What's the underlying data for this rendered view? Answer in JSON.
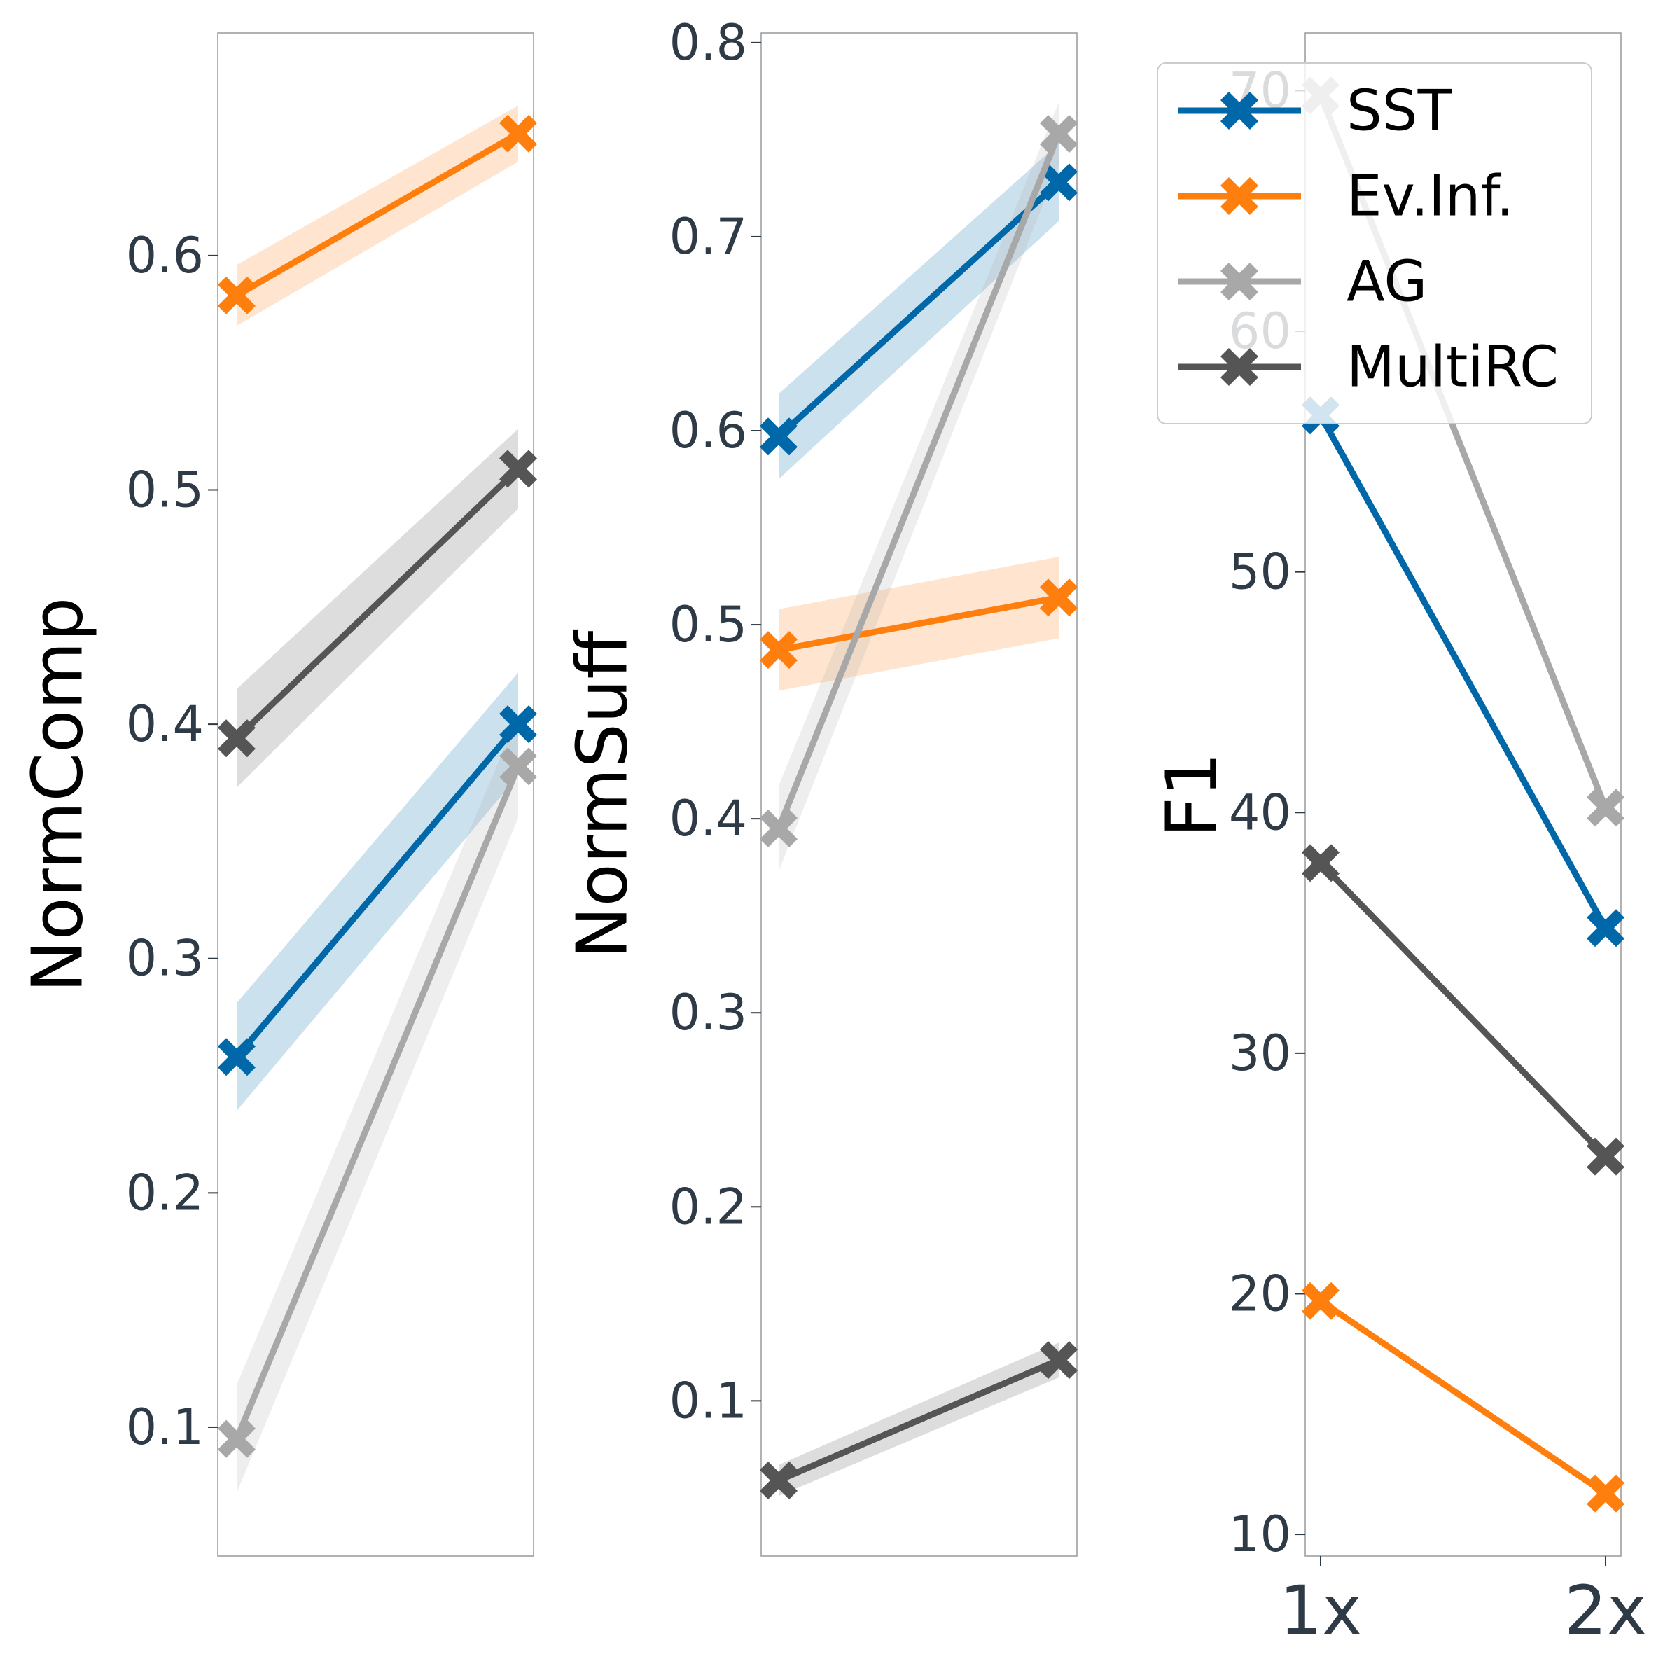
{
  "chart_data": [
    {
      "type": "line",
      "ylabel": "NormComp",
      "ylim": [
        0.045,
        0.695
      ],
      "yticks": [
        0.1,
        0.2,
        0.3,
        0.4,
        0.5,
        0.6
      ],
      "ytick_labels": [
        "0.1",
        "0.2",
        "0.3",
        "0.4",
        "0.5",
        "0.6"
      ],
      "x": [
        "1x",
        "2x"
      ],
      "show_xticks": false,
      "series": [
        {
          "name": "SST",
          "color": "#0068a8",
          "values": [
            0.258,
            0.4
          ],
          "lower": [
            0.235,
            0.378
          ],
          "upper": [
            0.281,
            0.422
          ]
        },
        {
          "name": "Ev.Inf.",
          "color": "#ff7f0e",
          "values": [
            0.583,
            0.652
          ],
          "lower": [
            0.57,
            0.64
          ],
          "upper": [
            0.596,
            0.664
          ]
        },
        {
          "name": "AG",
          "color": "#a8a8a8",
          "values": [
            0.095,
            0.382
          ],
          "lower": [
            0.072,
            0.36
          ],
          "upper": [
            0.118,
            0.404
          ]
        },
        {
          "name": "MultiRC",
          "color": "#555555",
          "values": [
            0.394,
            0.509
          ],
          "lower": [
            0.373,
            0.492
          ],
          "upper": [
            0.415,
            0.526
          ]
        }
      ]
    },
    {
      "type": "line",
      "ylabel": "NormSuff",
      "ylim": [
        0.02,
        0.805
      ],
      "yticks": [
        0.1,
        0.2,
        0.3,
        0.4,
        0.5,
        0.6,
        0.7,
        0.8
      ],
      "ytick_labels": [
        "0.1",
        "0.2",
        "0.3",
        "0.4",
        "0.5",
        "0.6",
        "0.7",
        "0.8"
      ],
      "x": [
        "1x",
        "2x"
      ],
      "show_xticks": false,
      "series": [
        {
          "name": "SST",
          "color": "#0068a8",
          "values": [
            0.597,
            0.728
          ],
          "lower": [
            0.575,
            0.708
          ],
          "upper": [
            0.619,
            0.748
          ]
        },
        {
          "name": "Ev.Inf.",
          "color": "#ff7f0e",
          "values": [
            0.487,
            0.514
          ],
          "lower": [
            0.466,
            0.493
          ],
          "upper": [
            0.508,
            0.535
          ]
        },
        {
          "name": "AG",
          "color": "#a8a8a8",
          "values": [
            0.395,
            0.753
          ],
          "lower": [
            0.373,
            0.737
          ],
          "upper": [
            0.417,
            0.769
          ]
        },
        {
          "name": "MultiRC",
          "color": "#555555",
          "values": [
            0.059,
            0.121
          ],
          "lower": [
            0.051,
            0.112
          ],
          "upper": [
            0.067,
            0.13
          ]
        }
      ]
    },
    {
      "type": "line",
      "ylabel": "F1",
      "ylim": [
        9.1,
        72.4
      ],
      "yticks": [
        10,
        20,
        30,
        40,
        50,
        60,
        70
      ],
      "ytick_labels": [
        "10",
        "20",
        "30",
        "40",
        "50",
        "60",
        "70"
      ],
      "x": [
        "1x",
        "2x"
      ],
      "show_xticks": true,
      "series": [
        {
          "name": "SST",
          "color": "#0068a8",
          "values": [
            56.5,
            35.2
          ]
        },
        {
          "name": "Ev.Inf.",
          "color": "#ff7f0e",
          "values": [
            19.7,
            11.7
          ]
        },
        {
          "name": "AG",
          "color": "#a8a8a8",
          "values": [
            69.8,
            40.2
          ]
        },
        {
          "name": "MultiRC",
          "color": "#555555",
          "values": [
            37.9,
            25.7
          ]
        }
      ],
      "legend": {
        "placement": "top-right",
        "entries": [
          {
            "label": "SST",
            "color": "#0068a8"
          },
          {
            "label": "Ev.Inf.",
            "color": "#ff7f0e"
          },
          {
            "label": "AG",
            "color": "#a8a8a8"
          },
          {
            "label": "MultiRC",
            "color": "#555555"
          }
        ]
      }
    }
  ]
}
